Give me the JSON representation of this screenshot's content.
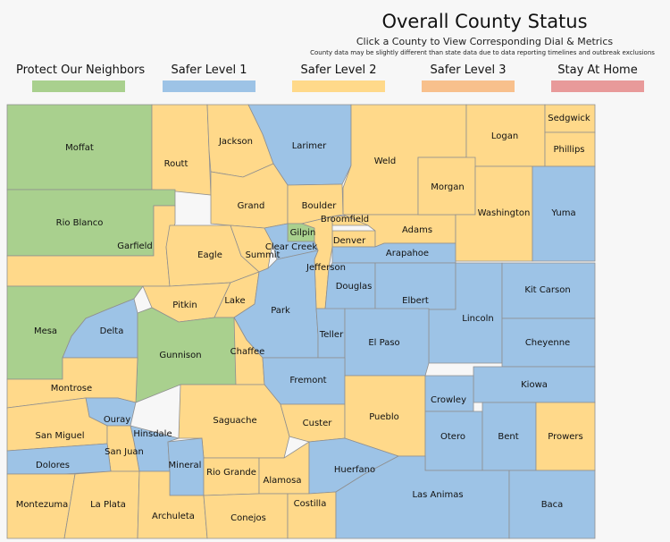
{
  "header": {
    "title": "Overall County Status",
    "subtitle": "Click a County to View Corresponding Dial & Metrics",
    "note": "County data may be slightly different than state data due to data reporting timelines and outbreak exclusions"
  },
  "legend": [
    {
      "key": "protect",
      "label": "Protect Our Neighbors",
      "color": "#a9d08e"
    },
    {
      "key": "safer1",
      "label": "Safer Level 1",
      "color": "#9dc3e6"
    },
    {
      "key": "safer2",
      "label": "Safer Level 2",
      "color": "#ffd98a"
    },
    {
      "key": "safer3",
      "label": "Safer Level 3",
      "color": "#f8c08c"
    },
    {
      "key": "home",
      "label": "Stay At Home",
      "color": "#e89a9a"
    }
  ],
  "counties": [
    {
      "name": "Moffat",
      "status": "protect"
    },
    {
      "name": "Routt",
      "status": "safer2"
    },
    {
      "name": "Jackson",
      "status": "safer2"
    },
    {
      "name": "Larimer",
      "status": "safer1"
    },
    {
      "name": "Weld",
      "status": "safer2"
    },
    {
      "name": "Logan",
      "status": "safer2"
    },
    {
      "name": "Sedgwick",
      "status": "safer2"
    },
    {
      "name": "Phillips",
      "status": "safer2"
    },
    {
      "name": "Rio Blanco",
      "status": "protect"
    },
    {
      "name": "Garfield",
      "status": "safer2"
    },
    {
      "name": "Eagle",
      "status": "safer2"
    },
    {
      "name": "Grand",
      "status": "safer2"
    },
    {
      "name": "Summit",
      "status": "safer2"
    },
    {
      "name": "Boulder",
      "status": "safer2"
    },
    {
      "name": "Gilpin",
      "status": "protect"
    },
    {
      "name": "Clear Creek",
      "status": "safer1"
    },
    {
      "name": "Broomfield",
      "status": "safer2"
    },
    {
      "name": "Denver",
      "status": "safer2"
    },
    {
      "name": "Adams",
      "status": "safer2"
    },
    {
      "name": "Jefferson",
      "status": "safer2"
    },
    {
      "name": "Arapahoe",
      "status": "safer1"
    },
    {
      "name": "Morgan",
      "status": "safer2"
    },
    {
      "name": "Washington",
      "status": "safer2"
    },
    {
      "name": "Yuma",
      "status": "safer1"
    },
    {
      "name": "Mesa",
      "status": "protect"
    },
    {
      "name": "Delta",
      "status": "safer1"
    },
    {
      "name": "Pitkin",
      "status": "safer2"
    },
    {
      "name": "Lake",
      "status": "safer2"
    },
    {
      "name": "Park",
      "status": "safer1"
    },
    {
      "name": "Douglas",
      "status": "safer1"
    },
    {
      "name": "Elbert",
      "status": "safer1"
    },
    {
      "name": "Lincoln",
      "status": "safer1"
    },
    {
      "name": "Kit Carson",
      "status": "safer1"
    },
    {
      "name": "Gunnison",
      "status": "protect"
    },
    {
      "name": "Chaffee",
      "status": "safer2"
    },
    {
      "name": "Teller",
      "status": "safer1"
    },
    {
      "name": "El Paso",
      "status": "safer1"
    },
    {
      "name": "Cheyenne",
      "status": "safer1"
    },
    {
      "name": "Montrose",
      "status": "safer2"
    },
    {
      "name": "Fremont",
      "status": "safer1"
    },
    {
      "name": "Kiowa",
      "status": "safer1"
    },
    {
      "name": "Ouray",
      "status": "safer1"
    },
    {
      "name": "Saguache",
      "status": "safer2"
    },
    {
      "name": "Custer",
      "status": "safer2"
    },
    {
      "name": "Pueblo",
      "status": "safer2"
    },
    {
      "name": "Crowley",
      "status": "safer1"
    },
    {
      "name": "San Miguel",
      "status": "safer2"
    },
    {
      "name": "Hinsdale",
      "status": "safer1"
    },
    {
      "name": "Otero",
      "status": "safer1"
    },
    {
      "name": "Bent",
      "status": "safer1"
    },
    {
      "name": "Prowers",
      "status": "safer2"
    },
    {
      "name": "San Juan",
      "status": "safer2"
    },
    {
      "name": "Dolores",
      "status": "safer1"
    },
    {
      "name": "Mineral",
      "status": "safer1"
    },
    {
      "name": "Rio Grande",
      "status": "safer2"
    },
    {
      "name": "Alamosa",
      "status": "safer2"
    },
    {
      "name": "Huerfano",
      "status": "safer1"
    },
    {
      "name": "Montezuma",
      "status": "safer2"
    },
    {
      "name": "La Plata",
      "status": "safer2"
    },
    {
      "name": "Archuleta",
      "status": "safer2"
    },
    {
      "name": "Conejos",
      "status": "safer2"
    },
    {
      "name": "Costilla",
      "status": "safer2"
    },
    {
      "name": "Las Animas",
      "status": "safer1"
    },
    {
      "name": "Baca",
      "status": "safer1"
    }
  ]
}
